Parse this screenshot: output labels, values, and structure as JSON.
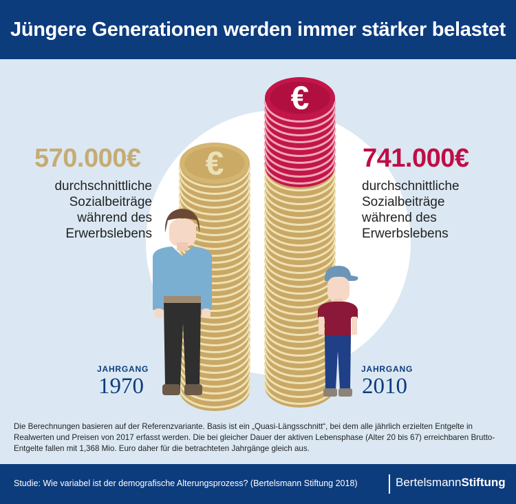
{
  "header": {
    "title": "Jüngere Generationen werden immer stärker belastet"
  },
  "left": {
    "amount": "570.000€",
    "description_lines": [
      "durchschnittliche",
      "Sozialbeiträge",
      "während des",
      "Erwerbslebens"
    ],
    "jahrgang_label": "JAHRGANG",
    "year": "1970"
  },
  "right": {
    "amount": "741.000€",
    "description_lines": [
      "durchschnittliche",
      "Sozialbeiträge",
      "während des",
      "Erwerbslebens"
    ],
    "jahrgang_label": "JAHRGANG",
    "year": "2010"
  },
  "coin_symbol": "€",
  "note": "Die Berechnungen basieren auf der Referenzvariante. Basis ist ein „Quasi-Längsschnitt“, bei dem alle jährlich erzielten Entgelte in Realwerten und Preisen von 2017 erfasst werden. Die bei gleicher Dauer der aktiven Lebensphase (Alter 20 bis 67) erreichbaren Brutto-Entgelte fallen mit 1,368 Mio. Euro daher für die betrachteten Jahrgänge gleich aus.",
  "footer": {
    "study": "Studie: Wie variabel ist der demografische Alterungsprozess? (Bertelsmann Stiftung  2018)",
    "brand_regular": "Bertelsmann",
    "brand_bold": "Stiftung"
  },
  "colors": {
    "navy": "#0d3c7d",
    "gold": "#c5ac74",
    "crimson": "#c00d45",
    "background": "#dbe8f3"
  }
}
